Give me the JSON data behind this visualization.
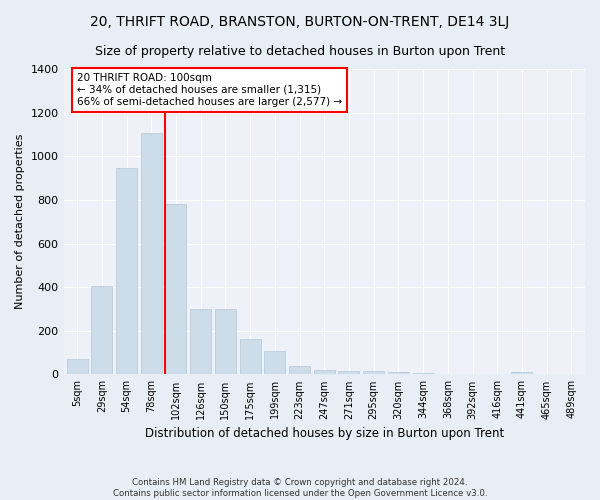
{
  "title": "20, THRIFT ROAD, BRANSTON, BURTON-ON-TRENT, DE14 3LJ",
  "subtitle": "Size of property relative to detached houses in Burton upon Trent",
  "xlabel": "Distribution of detached houses by size in Burton upon Trent",
  "ylabel": "Number of detached properties",
  "footnote1": "Contains HM Land Registry data © Crown copyright and database right 2024.",
  "footnote2": "Contains public sector information licensed under the Open Government Licence v3.0.",
  "categories": [
    "5sqm",
    "29sqm",
    "54sqm",
    "78sqm",
    "102sqm",
    "126sqm",
    "150sqm",
    "175sqm",
    "199sqm",
    "223sqm",
    "247sqm",
    "271sqm",
    "295sqm",
    "320sqm",
    "344sqm",
    "368sqm",
    "392sqm",
    "416sqm",
    "441sqm",
    "465sqm",
    "489sqm"
  ],
  "values": [
    70,
    405,
    945,
    1105,
    780,
    300,
    300,
    162,
    107,
    40,
    20,
    15,
    15,
    12,
    8,
    0,
    0,
    0,
    12,
    0,
    0
  ],
  "bar_color": "#ccdce8",
  "bar_edge_color": "#b0c8dc",
  "reference_line_label": "20 THRIFT ROAD: 100sqm",
  "annotation_line1": "← 34% of detached houses are smaller (1,315)",
  "annotation_line2": "66% of semi-detached houses are larger (2,577) →",
  "annotation_box_color": "white",
  "annotation_box_edge_color": "red",
  "vline_color": "red",
  "ylim": [
    0,
    1400
  ],
  "yticks": [
    0,
    200,
    400,
    600,
    800,
    1000,
    1200,
    1400
  ],
  "bg_color": "#e8eef5",
  "plot_bg_color": "#eef2f8",
  "grid_color": "white",
  "title_fontsize": 10,
  "subtitle_fontsize": 9
}
